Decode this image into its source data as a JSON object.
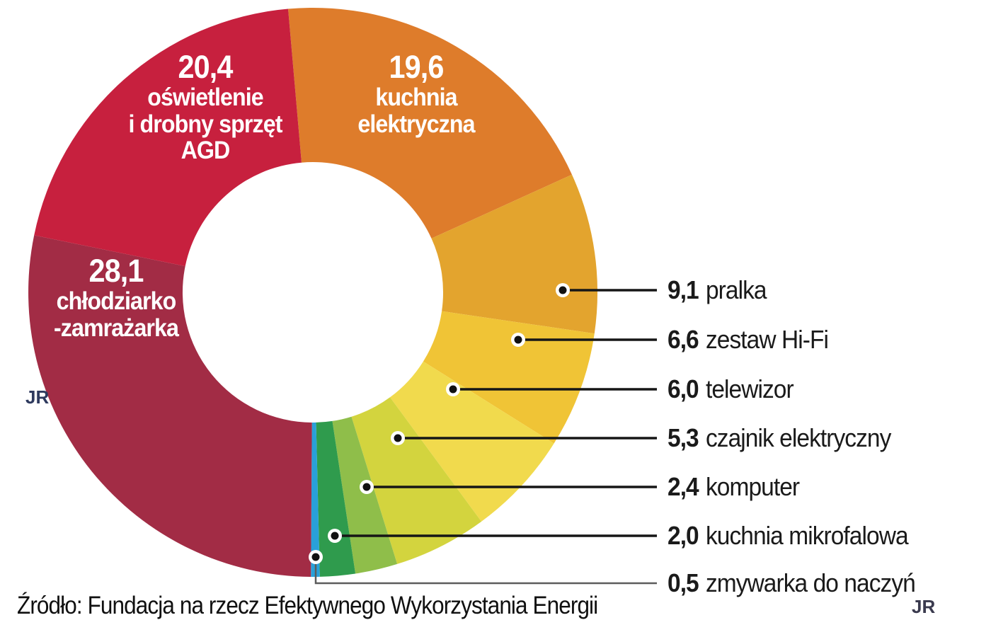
{
  "source_note": "Źródło: Fundacja na rzecz Efektywnego Wykorzystania Energii",
  "credits": {
    "left": "JR",
    "bottom_right": "JR"
  },
  "chart_data": {
    "type": "pie",
    "subtype": "donut",
    "title": "",
    "units": "percent",
    "rotation_deg": -5,
    "legend_position": "right",
    "total": 100.0,
    "slices": [
      {
        "label": "kuchnia elektryczna",
        "value": 19.6,
        "value_label": "19,6",
        "color": "#DE7C2B",
        "label_placement": "inside",
        "name_lines": [
          "kuchnia",
          "elektryczna"
        ]
      },
      {
        "label": "pralka",
        "value": 9.1,
        "value_label": "9,1",
        "color": "#E3A42E",
        "label_placement": "legend"
      },
      {
        "label": "zestaw Hi-Fi",
        "value": 6.6,
        "value_label": "6,6",
        "color": "#F0C436",
        "label_placement": "legend"
      },
      {
        "label": "telewizor",
        "value": 6.0,
        "value_label": "6,0",
        "color": "#F1DA4D",
        "label_placement": "legend"
      },
      {
        "label": "czajnik elektryczny",
        "value": 5.3,
        "value_label": "5,3",
        "color": "#D3D43E",
        "label_placement": "legend"
      },
      {
        "label": "komputer",
        "value": 2.4,
        "value_label": "2,4",
        "color": "#8FBE4A",
        "label_placement": "legend"
      },
      {
        "label": "kuchnia mikrofalowa",
        "value": 2.0,
        "value_label": "2,0",
        "color": "#2F9B4D",
        "label_placement": "legend"
      },
      {
        "label": "zmywarka do naczyń",
        "value": 0.5,
        "value_label": "0,5",
        "color": "#29A0D9",
        "label_placement": "legend"
      },
      {
        "label": "chłodziarko-zamrażarka",
        "value": 28.1,
        "value_label": "28,1",
        "color": "#A22C45",
        "label_placement": "inside",
        "name_lines": [
          "chłodziarko",
          "-zamrażarka"
        ]
      },
      {
        "label": "oświetlenie i drobny sprzęt AGD",
        "value": 20.4,
        "value_label": "20,4",
        "color": "#C7203E",
        "label_placement": "inside",
        "name_lines": [
          "oświetlenie",
          "i drobny sprzęt",
          "AGD"
        ]
      }
    ]
  }
}
